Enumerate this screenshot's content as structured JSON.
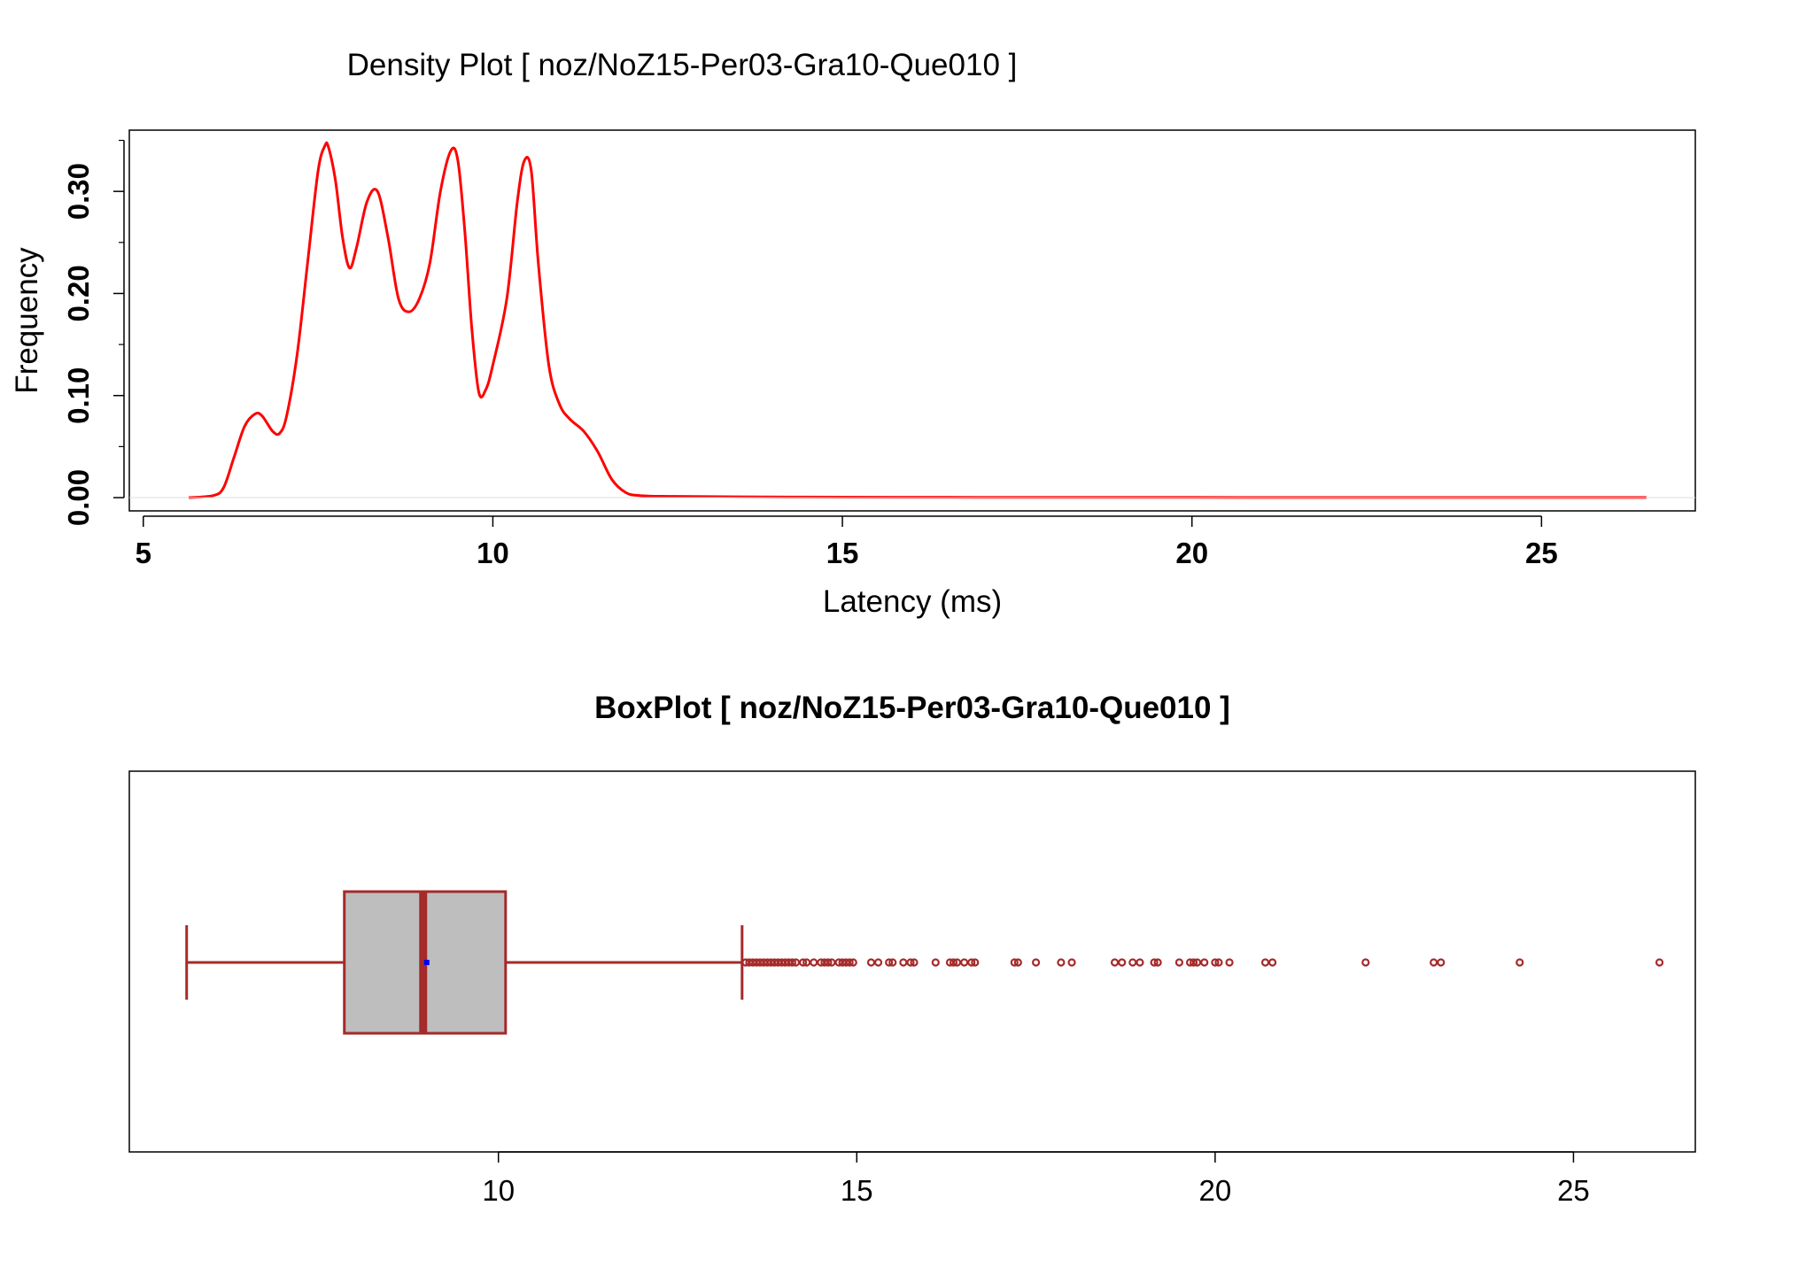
{
  "chart_data": [
    {
      "type": "line",
      "title": "Density Plot [ noz/NoZ15-Per03-Gra10-Que010 ]",
      "xlabel": "Latency (ms)",
      "ylabel": "Frequency",
      "xlim": [
        4.8,
        27.2
      ],
      "ylim": [
        -0.013,
        0.36
      ],
      "x_ticks": [
        5,
        10,
        15,
        20,
        25
      ],
      "x_tick_labels": [
        "5",
        "10",
        "15",
        "20",
        "25"
      ],
      "y_ticks": [
        0.0,
        0.1,
        0.2,
        0.3
      ],
      "y_tick_labels": [
        "0.00",
        "0.10",
        "0.20",
        "0.30"
      ],
      "y_minor_ticks": [
        0.05,
        0.15,
        0.25,
        0.35
      ],
      "series": [
        {
          "color": "#ff0000",
          "x": [
            5.65,
            6.0,
            6.15,
            6.3,
            6.45,
            6.6,
            6.7,
            6.85,
            6.95,
            7.05,
            7.2,
            7.35,
            7.5,
            7.6,
            7.65,
            7.75,
            7.85,
            7.95,
            8.05,
            8.2,
            8.35,
            8.5,
            8.65,
            8.8,
            8.95,
            9.1,
            9.25,
            9.4,
            9.5,
            9.6,
            9.7,
            9.8,
            9.9,
            10.0,
            10.2,
            10.35,
            10.45,
            10.55,
            10.65,
            10.8,
            10.95,
            11.1,
            11.3,
            11.5,
            11.7,
            11.9,
            12.1,
            12.5,
            13.5,
            15.0,
            16.5,
            18.0,
            20.0,
            22.0,
            24.0,
            26.5
          ],
          "y": [
            0.0,
            0.002,
            0.01,
            0.04,
            0.07,
            0.082,
            0.08,
            0.065,
            0.063,
            0.08,
            0.14,
            0.23,
            0.32,
            0.345,
            0.343,
            0.31,
            0.255,
            0.225,
            0.245,
            0.29,
            0.3,
            0.255,
            0.195,
            0.182,
            0.195,
            0.23,
            0.3,
            0.34,
            0.33,
            0.26,
            0.165,
            0.103,
            0.106,
            0.13,
            0.195,
            0.29,
            0.33,
            0.32,
            0.23,
            0.13,
            0.092,
            0.077,
            0.065,
            0.045,
            0.018,
            0.005,
            0.002,
            0.0012,
            0.0008,
            0.0004,
            0.0003,
            0.0002,
            0.0002,
            0.0001,
            0.0001,
            0.0001
          ]
        }
      ]
    },
    {
      "type": "box",
      "title": "BoxPlot [ noz/NoZ15-Per03-Gra10-Que010 ]",
      "xlabel": "",
      "ylabel": "",
      "xlim": [
        4.85,
        26.7
      ],
      "x_ticks": [
        10,
        15,
        20,
        25
      ],
      "x_tick_labels": [
        "10",
        "15",
        "20",
        "25"
      ],
      "whisker_low": 5.65,
      "q1": 7.85,
      "median": 8.95,
      "q3": 10.1,
      "whisker_high": 13.4,
      "mean": 9.0,
      "box_color": "#bebebe",
      "line_color": "#a52a2a",
      "mean_color": "#0000ff",
      "outliers": [
        13.45,
        13.5,
        13.55,
        13.6,
        13.65,
        13.7,
        13.75,
        13.8,
        13.85,
        13.9,
        13.95,
        14.0,
        14.05,
        14.1,
        14.15,
        14.25,
        14.3,
        14.4,
        14.5,
        14.55,
        14.6,
        14.65,
        14.75,
        14.8,
        14.85,
        14.9,
        14.95,
        15.2,
        15.3,
        15.45,
        15.5,
        15.65,
        15.75,
        15.8,
        16.1,
        16.3,
        16.35,
        16.4,
        16.5,
        16.6,
        16.65,
        17.2,
        17.25,
        17.5,
        17.85,
        18.0,
        18.6,
        18.7,
        18.85,
        18.95,
        19.15,
        19.2,
        19.5,
        19.65,
        19.7,
        19.75,
        19.85,
        20.0,
        20.05,
        20.2,
        20.7,
        20.8,
        22.1,
        23.05,
        23.15,
        24.25,
        26.2
      ]
    }
  ]
}
